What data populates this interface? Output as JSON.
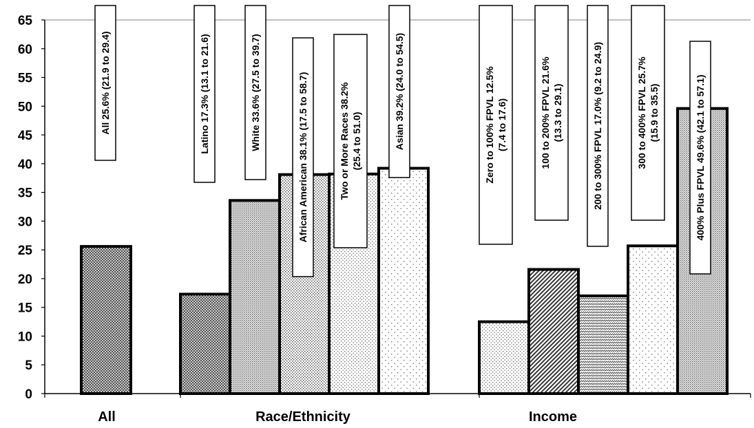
{
  "chart_data": {
    "type": "bar",
    "ylim": [
      0,
      65
    ],
    "yticks": [
      0,
      5,
      10,
      15,
      20,
      25,
      30,
      35,
      40,
      45,
      50,
      55,
      60,
      65
    ],
    "grid": false,
    "legend": "none",
    "groups": [
      {
        "label": "All",
        "bars": [
          {
            "label": "All 25.6% (21.9 to 29.4)",
            "value": 25.6,
            "pattern": "dark-dots"
          }
        ]
      },
      {
        "label": "Race/Ethnicity",
        "bars": [
          {
            "label": "Latino 17.3% (13.1 to 21.6)",
            "value": 17.3,
            "pattern": "crosshatch"
          },
          {
            "label": "White 33.6% (27.5 to 39.7)",
            "value": 33.6,
            "pattern": "fine-dots"
          },
          {
            "label": "African American 38.1% (17.5 to 58.7)",
            "value": 38.1,
            "pattern": "medium-dots"
          },
          {
            "label": "Two or More Races 38.2% (25.4 to 51.0)",
            "value": 38.2,
            "pattern": "light-dots"
          },
          {
            "label": "Asian 39.2% (24.0 to 54.5)",
            "value": 39.2,
            "pattern": "sparse-dots"
          }
        ]
      },
      {
        "label": "Income",
        "bars": [
          {
            "label": "Zero to 100% FPVL 12.5% (7.4 to 17.6)",
            "value": 12.5,
            "pattern": "light-dots"
          },
          {
            "label": "100 to 200% FPVL 21.6% (13.3 to 29.1)",
            "value": 21.6,
            "pattern": "diagonal"
          },
          {
            "label": "200 to 300% FPVL 17.0% (9.2 to 24.9)",
            "value": 17.0,
            "pattern": "zigzag"
          },
          {
            "label": "300 to 400% FPVL 25.7% (15.9 to 35.5)",
            "value": 25.7,
            "pattern": "sparse-dots"
          },
          {
            "label": "400% Plus FPVL 49.6% (42.1 to 57.1)",
            "value": 49.6,
            "pattern": "fine-dots"
          }
        ]
      }
    ]
  }
}
